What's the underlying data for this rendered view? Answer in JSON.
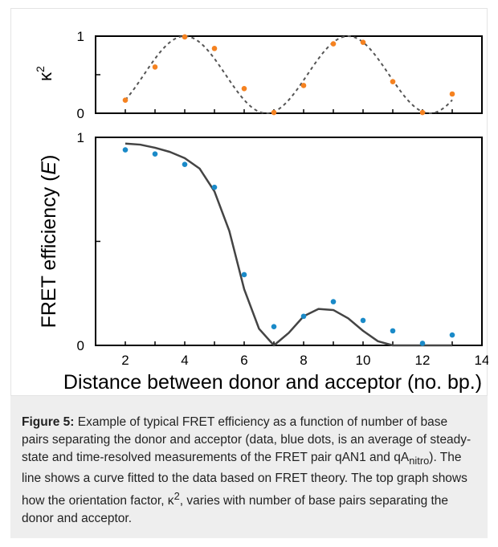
{
  "figure": {
    "caption_label": "Figure 5:",
    "caption_text_1": " Example of typical FRET efficiency as a function of number of base pairs separating the donor and acceptor (data, blue dots, is an average of steady-state and time-resolved measurements of the FRET pair qAN1 and qA",
    "caption_sub": "nitro",
    "caption_text_2": "). The line shows a curve fitted to the data based on FRET theory. The top graph shows how the orientation factor, κ",
    "caption_sup": "2",
    "caption_text_3": ", varies with number of base pairs separating the donor and acceptor."
  },
  "chart_data": [
    {
      "type": "scatter",
      "panel": "top",
      "ylabel": "κ",
      "ylabel_sup": "2",
      "xlim": [
        1,
        14
      ],
      "ylim": [
        0,
        1
      ],
      "y_ticks": [
        "0",
        "1"
      ],
      "marker_color": "#f58220",
      "line_color": "#555555",
      "line_style": "dashed",
      "series": [
        {
          "x": [
            2,
            3,
            4,
            5,
            6,
            7,
            8,
            9,
            10,
            11,
            12,
            13
          ],
          "values": [
            0.17,
            0.6,
            0.99,
            0.84,
            0.32,
            0.01,
            0.36,
            0.9,
            0.92,
            0.41,
            0.01,
            0.25
          ]
        }
      ],
      "curve": {
        "kind": "cosine-squared",
        "period_bp": 5.5,
        "peak_x": 4.0
      }
    },
    {
      "type": "scatter",
      "panel": "bottom",
      "ylabel": "FRET efficiency (",
      "ylabel_italic": "E",
      "ylabel_end": ")",
      "xlabel": "Distance between donor and acceptor (no. bp.)",
      "xlim": [
        1,
        14
      ],
      "ylim": [
        0,
        1
      ],
      "x_ticks": [
        "2",
        "4",
        "6",
        "8",
        "10",
        "12",
        "14"
      ],
      "y_ticks": [
        "0",
        "1"
      ],
      "marker_color": "#1a8ac8",
      "line_color": "#444444",
      "series": [
        {
          "x": [
            2,
            3,
            4,
            5,
            6,
            7,
            8,
            9,
            10,
            11,
            12,
            13
          ],
          "values": [
            0.94,
            0.92,
            0.87,
            0.76,
            0.34,
            0.09,
            0.14,
            0.21,
            0.12,
            0.07,
            0.01,
            0.05
          ]
        }
      ],
      "fit_curve": {
        "x": [
          2,
          2.5,
          3,
          3.5,
          4,
          4.5,
          5,
          5.5,
          6,
          6.5,
          7,
          7.5,
          8,
          8.5,
          9,
          9.5,
          10,
          10.5,
          11,
          11.5,
          12,
          12.5,
          13
        ],
        "values": [
          0.97,
          0.965,
          0.95,
          0.93,
          0.9,
          0.85,
          0.74,
          0.55,
          0.27,
          0.08,
          0.0,
          0.06,
          0.14,
          0.175,
          0.17,
          0.13,
          0.07,
          0.02,
          0.0,
          0.0,
          0.0,
          0.0,
          0.0
        ]
      }
    }
  ]
}
